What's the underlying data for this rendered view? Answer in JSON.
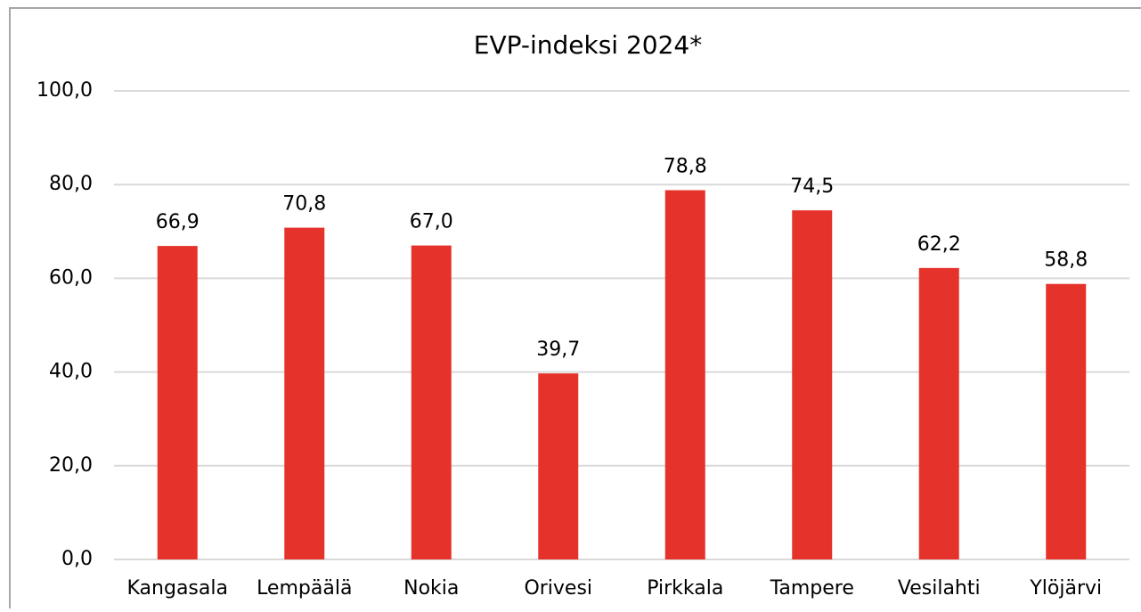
{
  "chart_data": {
    "type": "bar",
    "title": "EVP-indeksi 2024*",
    "categories": [
      "Kangasala",
      "Lempäälä",
      "Nokia",
      "Orivesi",
      "Pirkkala",
      "Tampere",
      "Vesilahti",
      "Ylöjärvi"
    ],
    "values": [
      66.9,
      70.8,
      67.0,
      39.7,
      78.8,
      74.5,
      62.2,
      58.8
    ],
    "value_labels": [
      "66,9",
      "70,8",
      "67,0",
      "39,7",
      "78,8",
      "74,5",
      "62,2",
      "58,8"
    ],
    "color": "#e5322a",
    "ylim": [
      0,
      100
    ],
    "yticks": [
      {
        "value": 0,
        "label": "0,0"
      },
      {
        "value": 20,
        "label": "20,0"
      },
      {
        "value": 40,
        "label": "40,0"
      },
      {
        "value": 60,
        "label": "60,0"
      },
      {
        "value": 80,
        "label": "80,0"
      },
      {
        "value": 100,
        "label": "100,0"
      }
    ],
    "grid": true
  }
}
